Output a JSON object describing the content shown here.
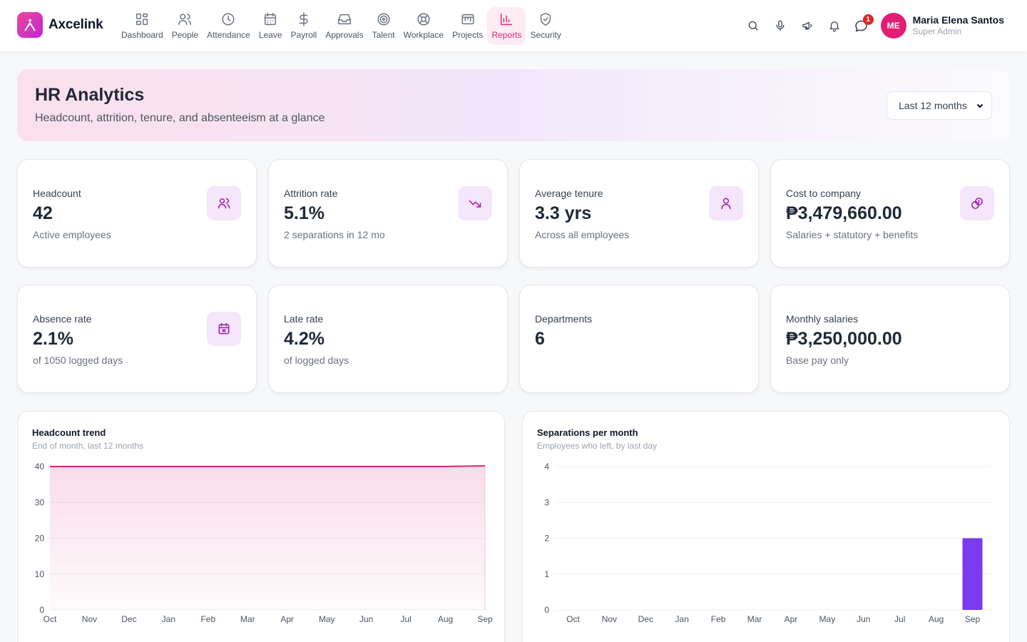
{
  "app": {
    "name": "Axcelink"
  },
  "nav": [
    {
      "label": "Dashboard",
      "icon": "dashboard-icon"
    },
    {
      "label": "People",
      "icon": "people-icon"
    },
    {
      "label": "Attendance",
      "icon": "clock-icon"
    },
    {
      "label": "Leave",
      "icon": "calendar-icon"
    },
    {
      "label": "Payroll",
      "icon": "dollar-icon"
    },
    {
      "label": "Approvals",
      "icon": "inbox-icon"
    },
    {
      "label": "Talent",
      "icon": "target-icon"
    },
    {
      "label": "Workplace",
      "icon": "lifebuoy-icon"
    },
    {
      "label": "Projects",
      "icon": "projects-icon"
    },
    {
      "label": "Reports",
      "icon": "bar-chart-icon",
      "active": true
    },
    {
      "label": "Security",
      "icon": "shield-icon"
    }
  ],
  "toolbar": {
    "notification_count": "1"
  },
  "user": {
    "initials": "ME",
    "name": "Maria Elena Santos",
    "role": "Super Admin"
  },
  "header": {
    "title": "HR Analytics",
    "subtitle": "Headcount, attrition, tenure, and absenteeism at a glance",
    "period": "Last 12 months"
  },
  "kpis": [
    {
      "label": "Headcount",
      "value": "42",
      "note": "Active employees",
      "icon": "users-icon"
    },
    {
      "label": "Attrition rate",
      "value": "5.1%",
      "note": "2 separations in 12 mo",
      "icon": "trending-down-icon"
    },
    {
      "label": "Average tenure",
      "value": "3.3 yrs",
      "note": "Across all employees",
      "icon": "user-icon"
    },
    {
      "label": "Cost to company",
      "value": "₱3,479,660.00",
      "note": "Salaries + statutory + benefits",
      "icon": "coins-icon"
    },
    {
      "label": "Absence rate",
      "value": "2.1%",
      "note": "of 1050 logged days",
      "icon": "calendar-x-icon"
    },
    {
      "label": "Late rate",
      "value": "4.2%",
      "note": "of logged days"
    },
    {
      "label": "Departments",
      "value": "6",
      "note": ""
    },
    {
      "label": "Monthly salaries",
      "value": "₱3,250,000.00",
      "note": "Base pay only"
    }
  ],
  "charts": {
    "headcount": {
      "title": "Headcount trend",
      "subtitle": "End of month, last 12 months"
    },
    "separations": {
      "title": "Separations per month",
      "subtitle": "Employees who left, by last day"
    }
  },
  "colors": {
    "accent": "#db2777",
    "bar": "#7c3aed",
    "icon": "#a21caf"
  },
  "chart_data": [
    {
      "type": "area",
      "title": "Headcount trend",
      "subtitle": "End of month, last 12 months",
      "categories": [
        "Oct",
        "Nov",
        "Dec",
        "Jan",
        "Feb",
        "Mar",
        "Apr",
        "May",
        "Jun",
        "Jul",
        "Aug",
        "Sep"
      ],
      "values": [
        40,
        40,
        40,
        40,
        40,
        40,
        40,
        40,
        40,
        40,
        40,
        41
      ],
      "ylim": [
        0,
        40
      ],
      "yticks": [
        0,
        10,
        20,
        30,
        40
      ],
      "grid": true,
      "color": "#db2777"
    },
    {
      "type": "bar",
      "title": "Separations per month",
      "subtitle": "Employees who left, by last day",
      "categories": [
        "Oct",
        "Nov",
        "Dec",
        "Jan",
        "Feb",
        "Mar",
        "Apr",
        "May",
        "Jun",
        "Jul",
        "Aug",
        "Sep"
      ],
      "values": [
        0,
        0,
        0,
        0,
        0,
        0,
        0,
        0,
        0,
        0,
        0,
        2
      ],
      "ylim": [
        0,
        4
      ],
      "yticks": [
        0,
        1,
        2,
        3,
        4
      ],
      "grid": true,
      "color": "#7c3aed"
    }
  ]
}
